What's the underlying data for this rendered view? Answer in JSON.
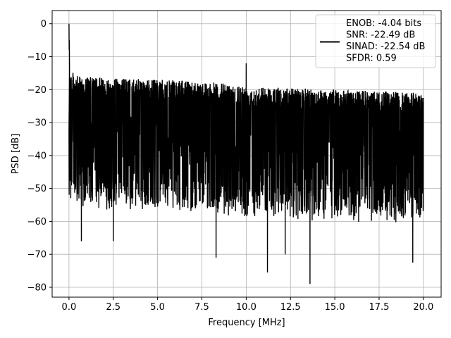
{
  "chart_data": {
    "type": "line",
    "title": "",
    "xlabel": "Frequency [MHz]",
    "ylabel": "PSD [dB]",
    "xlim": [
      -0.95,
      21.0
    ],
    "ylim": [
      -83.0,
      4.0
    ],
    "x_ticks": [
      0.0,
      2.5,
      5.0,
      7.5,
      10.0,
      12.5,
      15.0,
      17.5,
      20.0
    ],
    "x_tick_labels": [
      "0.0",
      "2.5",
      "5.0",
      "7.5",
      "10.0",
      "12.5",
      "15.0",
      "17.5",
      "20.0"
    ],
    "y_ticks": [
      0,
      -10,
      -20,
      -30,
      -40,
      -50,
      -60,
      -70,
      -80
    ],
    "y_tick_labels": [
      "0",
      "−10",
      "−20",
      "−30",
      "−40",
      "−50",
      "−60",
      "−70",
      "−80"
    ],
    "grid": true,
    "legend_position": "top-right",
    "series": [
      {
        "name": "ENOB: -4.04 bits\nSNR: -22.49 dB\nSINAD: -22.54 dB\nSFDR: 0.59",
        "color": "#000000",
        "summary": {
          "x_range": [
            0.0,
            20.0
          ],
          "peak": {
            "x": 0.0,
            "y": 0.0
          },
          "spur": {
            "x": 10.0,
            "y": -12.0
          },
          "upper_envelope": [
            [
              0.05,
              -14
            ],
            [
              0.5,
              -16
            ],
            [
              2.5,
              -16.5
            ],
            [
              5.0,
              -17
            ],
            [
              7.5,
              -17.5
            ],
            [
              10.5,
              -19
            ],
            [
              12.5,
              -19.5
            ],
            [
              15.0,
              -20
            ],
            [
              17.5,
              -20.5
            ],
            [
              20.0,
              -21
            ]
          ],
          "noise_floor_median": -33,
          "deep_minima": [
            [
              0.7,
              -66
            ],
            [
              2.5,
              -66
            ],
            [
              8.3,
              -71
            ],
            [
              11.2,
              -75.5
            ],
            [
              12.2,
              -70
            ],
            [
              13.6,
              -79
            ],
            [
              19.4,
              -72.5
            ]
          ]
        }
      }
    ],
    "legend": {
      "lines": [
        "ENOB: -4.04 bits",
        "SNR: -22.49 dB",
        "SINAD: -22.54 dB",
        "SFDR: 0.59"
      ]
    }
  }
}
